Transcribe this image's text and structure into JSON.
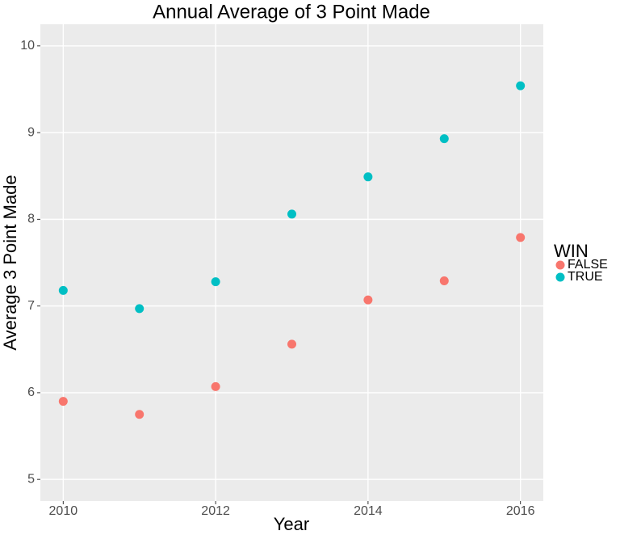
{
  "chart_data": {
    "type": "scatter",
    "title": "Annual Average of 3 Point Made",
    "x_label": "Year",
    "y_label": "Average 3 Point Made",
    "legend_title": "WIN",
    "legend_position": "right",
    "grid": true,
    "x": [
      2010,
      2011,
      2012,
      2013,
      2014,
      2015,
      2016
    ],
    "series": [
      {
        "name": "FALSE",
        "color": "#F8766D",
        "values": [
          5.9,
          5.75,
          6.07,
          6.56,
          7.07,
          7.29,
          7.79
        ]
      },
      {
        "name": "TRUE",
        "color": "#00BFC4",
        "values": [
          7.18,
          6.97,
          7.28,
          8.06,
          8.49,
          8.93,
          9.54
        ]
      }
    ],
    "xlim": [
      2009.7,
      2016.3
    ],
    "xticks": [
      2010,
      2012,
      2014,
      2016
    ],
    "ylim": [
      4.75,
      10.25
    ],
    "yticks": [
      5,
      6,
      7,
      8,
      9,
      10
    ]
  }
}
